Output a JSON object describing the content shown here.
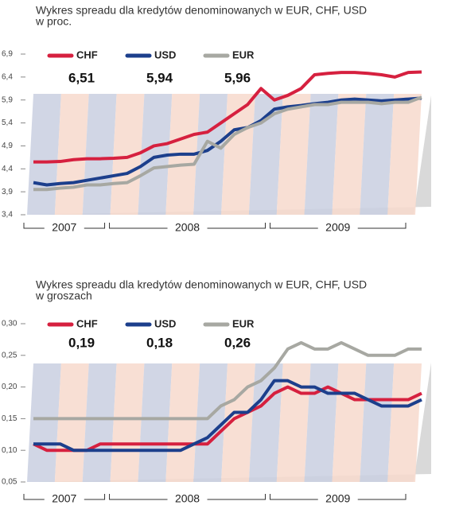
{
  "chart_data": [
    {
      "type": "line",
      "title": "Wykres spreadu dla kredytów denominowanych w EUR, CHF, USD",
      "subtitle": "w proc.",
      "categories": [
        "2007",
        "2007",
        "2007",
        "2007",
        "2007",
        "2007",
        "2008",
        "2008",
        "2008",
        "2008",
        "2008",
        "2008",
        "2008",
        "2008",
        "2008",
        "2008",
        "2008",
        "2008",
        "2009",
        "2009",
        "2009",
        "2009",
        "2009",
        "2009",
        "2009",
        "2009",
        "2009",
        "2009",
        "2009",
        "2009"
      ],
      "ylim": [
        3.4,
        6.9
      ],
      "yticks": [
        {
          "value": 3.4,
          "label": "3,4"
        },
        {
          "value": 3.9,
          "label": "3,9"
        },
        {
          "value": 4.4,
          "label": "4,4"
        },
        {
          "value": 4.9,
          "label": "4,9"
        },
        {
          "value": 5.4,
          "label": "5,4"
        },
        {
          "value": 5.9,
          "label": "5,9"
        },
        {
          "value": 6.4,
          "label": "6,4"
        },
        {
          "value": 6.9,
          "label": "6,9"
        }
      ],
      "series": [
        {
          "name": "CHF",
          "color": "#d6203f",
          "current": {
            "value": 6.51,
            "label": "6,51"
          },
          "values": [
            4.55,
            4.55,
            4.56,
            4.6,
            4.62,
            4.62,
            4.63,
            4.65,
            4.75,
            4.9,
            4.95,
            5.05,
            5.15,
            5.2,
            5.4,
            5.6,
            5.8,
            6.15,
            5.9,
            6.0,
            6.15,
            6.45,
            6.48,
            6.5,
            6.5,
            6.48,
            6.45,
            6.4,
            6.5,
            6.51
          ]
        },
        {
          "name": "USD",
          "color": "#1c3f8c",
          "current": {
            "value": 5.94,
            "label": "5,94"
          },
          "values": [
            4.1,
            4.05,
            4.08,
            4.1,
            4.15,
            4.2,
            4.25,
            4.3,
            4.45,
            4.65,
            4.7,
            4.72,
            4.72,
            4.8,
            5.0,
            5.25,
            5.3,
            5.45,
            5.7,
            5.75,
            5.78,
            5.82,
            5.85,
            5.9,
            5.92,
            5.9,
            5.88,
            5.9,
            5.92,
            5.94
          ]
        },
        {
          "name": "EUR",
          "color": "#a7a8a2",
          "current": {
            "value": 5.96,
            "label": "5,96"
          },
          "values": [
            3.95,
            3.95,
            3.98,
            4.0,
            4.05,
            4.05,
            4.08,
            4.1,
            4.25,
            4.42,
            4.45,
            4.48,
            4.5,
            5.0,
            4.85,
            5.15,
            5.3,
            5.4,
            5.6,
            5.7,
            5.75,
            5.8,
            5.8,
            5.85,
            5.85,
            5.85,
            5.82,
            5.85,
            5.85,
            5.96
          ]
        }
      ]
    },
    {
      "type": "line",
      "title": "Wykres spreadu dla kredytów denominowanych w EUR, CHF, USD",
      "subtitle": "w groszach",
      "categories": [
        "2007",
        "2007",
        "2007",
        "2007",
        "2007",
        "2007",
        "2008",
        "2008",
        "2008",
        "2008",
        "2008",
        "2008",
        "2008",
        "2008",
        "2008",
        "2008",
        "2008",
        "2008",
        "2009",
        "2009",
        "2009",
        "2009",
        "2009",
        "2009",
        "2009",
        "2009",
        "2009",
        "2009",
        "2009",
        "2009"
      ],
      "ylim": [
        0.05,
        0.3
      ],
      "yticks": [
        {
          "value": 0.05,
          "label": "0,05"
        },
        {
          "value": 0.1,
          "label": "0,10"
        },
        {
          "value": 0.15,
          "label": "0,15"
        },
        {
          "value": 0.2,
          "label": "0,20"
        },
        {
          "value": 0.25,
          "label": "0,25"
        },
        {
          "value": 0.3,
          "label": "0,30"
        }
      ],
      "series": [
        {
          "name": "CHF",
          "color": "#d6203f",
          "current": {
            "value": 0.19,
            "label": "0,19"
          },
          "values": [
            0.11,
            0.1,
            0.1,
            0.1,
            0.1,
            0.11,
            0.11,
            0.11,
            0.11,
            0.11,
            0.11,
            0.11,
            0.11,
            0.11,
            0.13,
            0.15,
            0.16,
            0.17,
            0.19,
            0.2,
            0.19,
            0.19,
            0.2,
            0.19,
            0.18,
            0.18,
            0.18,
            0.18,
            0.18,
            0.19
          ]
        },
        {
          "name": "USD",
          "color": "#1c3f8c",
          "current": {
            "value": 0.18,
            "label": "0,18"
          },
          "values": [
            0.11,
            0.11,
            0.11,
            0.1,
            0.1,
            0.1,
            0.1,
            0.1,
            0.1,
            0.1,
            0.1,
            0.1,
            0.11,
            0.12,
            0.14,
            0.16,
            0.16,
            0.18,
            0.21,
            0.21,
            0.2,
            0.2,
            0.19,
            0.19,
            0.19,
            0.18,
            0.17,
            0.17,
            0.17,
            0.18
          ]
        },
        {
          "name": "EUR",
          "color": "#a7a8a2",
          "current": {
            "value": 0.26,
            "label": "0,26"
          },
          "values": [
            0.15,
            0.15,
            0.15,
            0.15,
            0.15,
            0.15,
            0.15,
            0.15,
            0.15,
            0.15,
            0.15,
            0.15,
            0.15,
            0.15,
            0.17,
            0.18,
            0.2,
            0.21,
            0.23,
            0.26,
            0.27,
            0.26,
            0.26,
            0.27,
            0.26,
            0.25,
            0.25,
            0.25,
            0.26,
            0.26
          ]
        }
      ]
    }
  ]
}
